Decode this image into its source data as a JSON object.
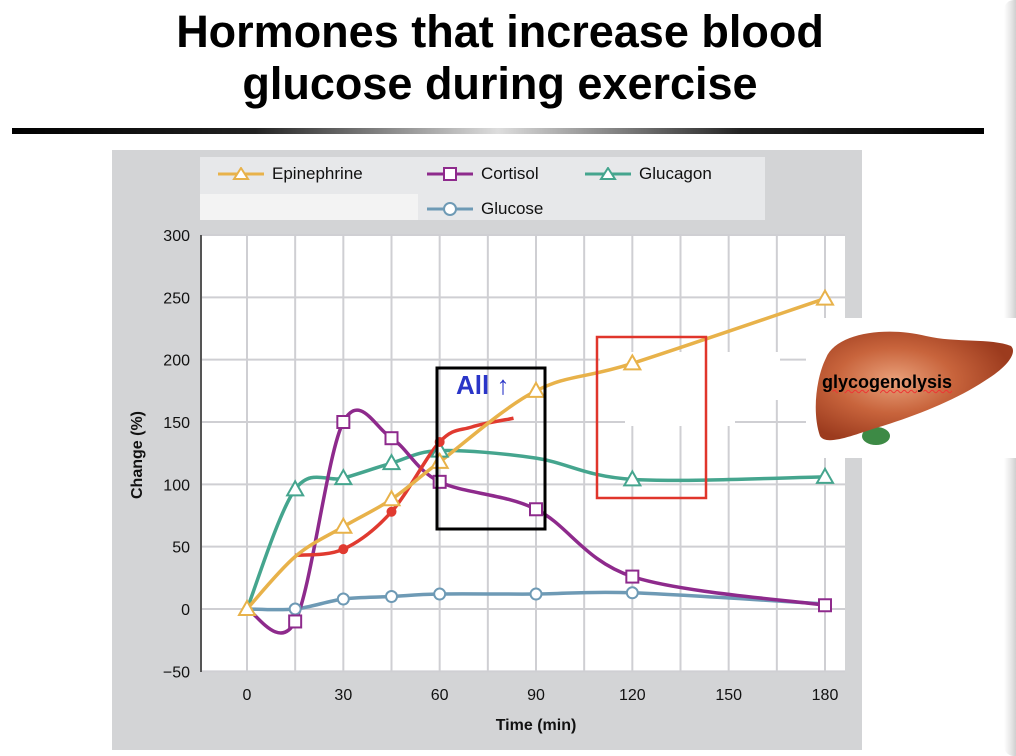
{
  "slide": {
    "title_line1": "Hormones that increase blood",
    "title_line2": "glucose during exercise"
  },
  "annotations": {
    "all_up": "All ↑",
    "liver_label": "glycogenolysis",
    "liver_icon": "liver-image"
  },
  "chart_data": {
    "type": "line",
    "title": "",
    "xlabel": "Time (min)",
    "ylabel": "Change (%)",
    "xlim": [
      -10,
      190
    ],
    "ylim": [
      -50,
      300
    ],
    "xticks": [
      0,
      30,
      60,
      90,
      120,
      150,
      180
    ],
    "yticks": [
      -50,
      0,
      50,
      100,
      150,
      200,
      250,
      300
    ],
    "xtick_labels": [
      "0",
      "30",
      "60",
      "90",
      "120",
      "150",
      "180"
    ],
    "ytick_labels": [
      "−50",
      "0",
      "50",
      "100",
      "150",
      "200",
      "250",
      "300"
    ],
    "grid": true,
    "legend_position": "top",
    "series": [
      {
        "name": "Epinephrine",
        "color": "#e8b24a",
        "marker": "triangle-open",
        "points": [
          [
            0,
            0
          ],
          [
            15,
            42
          ],
          [
            30,
            66
          ],
          [
            45,
            88
          ],
          [
            60,
            118
          ],
          [
            90,
            175
          ],
          [
            120,
            197
          ],
          [
            180,
            249
          ]
        ],
        "marked": [
          0,
          2,
          3,
          4,
          5,
          6,
          7
        ]
      },
      {
        "name": "Cortisol",
        "color": "#8e2a8c",
        "marker": "square-open",
        "points": [
          [
            0,
            0
          ],
          [
            15,
            -10
          ],
          [
            30,
            150
          ],
          [
            45,
            137
          ],
          [
            60,
            102
          ],
          [
            90,
            80
          ],
          [
            120,
            26
          ],
          [
            180,
            3
          ]
        ],
        "marked": [
          1,
          2,
          3,
          4,
          5,
          6,
          7
        ]
      },
      {
        "name": "Glucagon",
        "color": "#45a58e",
        "marker": "triangle-open",
        "points": [
          [
            0,
            0
          ],
          [
            15,
            96
          ],
          [
            30,
            105
          ],
          [
            45,
            117
          ],
          [
            60,
            127
          ],
          [
            90,
            121
          ],
          [
            120,
            104
          ],
          [
            180,
            106
          ]
        ],
        "marked": [
          1,
          2,
          3,
          4,
          6,
          7
        ]
      },
      {
        "name": "Glucose",
        "color": "#6e9ab5",
        "marker": "circle-open",
        "points": [
          [
            0,
            0
          ],
          [
            15,
            0
          ],
          [
            30,
            8
          ],
          [
            45,
            10
          ],
          [
            60,
            12
          ],
          [
            90,
            12
          ],
          [
            120,
            13
          ],
          [
            180,
            4
          ]
        ],
        "marked": [
          1,
          2,
          3,
          4,
          5,
          6
        ]
      },
      {
        "color": "#e03a30",
        "marker": "circle-filled",
        "points": [
          [
            15,
            43
          ],
          [
            30,
            48
          ],
          [
            45,
            78
          ],
          [
            60,
            134
          ],
          [
            70,
            146
          ],
          [
            83,
            153
          ]
        ],
        "marked": [
          1,
          2,
          3
        ]
      }
    ]
  }
}
